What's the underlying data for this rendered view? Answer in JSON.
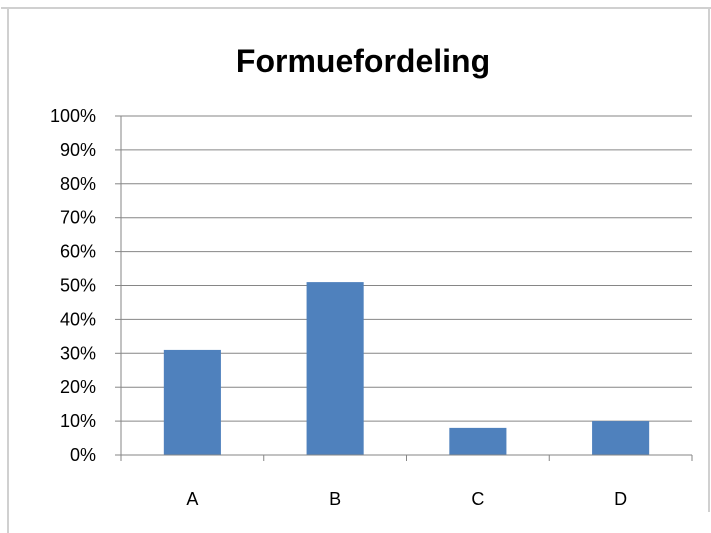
{
  "chart_data": {
    "type": "bar",
    "title": "Formuefordeling",
    "xlabel": "",
    "ylabel": "",
    "categories": [
      "A",
      "B",
      "C",
      "D"
    ],
    "values": [
      31,
      51,
      8,
      10
    ],
    "unit": "%",
    "ylim": [
      0,
      100
    ],
    "ytick_step": 10,
    "yticks": [
      "0%",
      "10%",
      "20%",
      "30%",
      "40%",
      "50%",
      "60%",
      "70%",
      "80%",
      "90%",
      "100%"
    ],
    "grid": true,
    "legend": "none",
    "bar_color": "#4F81BD",
    "grid_color": "#868686"
  }
}
